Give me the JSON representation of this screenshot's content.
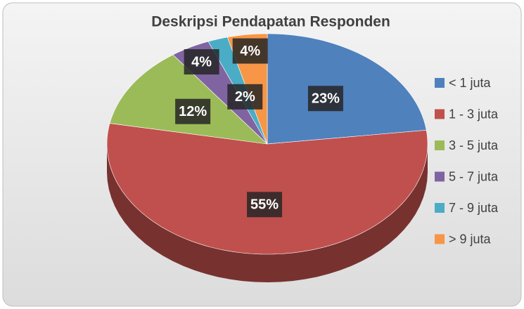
{
  "chart_data": {
    "type": "pie",
    "title": "Deskripsi Pendapatan Responden",
    "categories": [
      "< 1 juta",
      "1 - 3 juta",
      "3 - 5 juta",
      "5 - 7 juta",
      "7 - 9 juta",
      "> 9 juta"
    ],
    "values": [
      23,
      55,
      12,
      4,
      2,
      4
    ],
    "value_labels": [
      "23%",
      "55%",
      "12%",
      "4%",
      "2%",
      "4%"
    ],
    "colors": [
      "#4f81bd",
      "#c0504d",
      "#9bbb59",
      "#8064a2",
      "#4bacc6",
      "#f79646"
    ],
    "legend": "right"
  }
}
